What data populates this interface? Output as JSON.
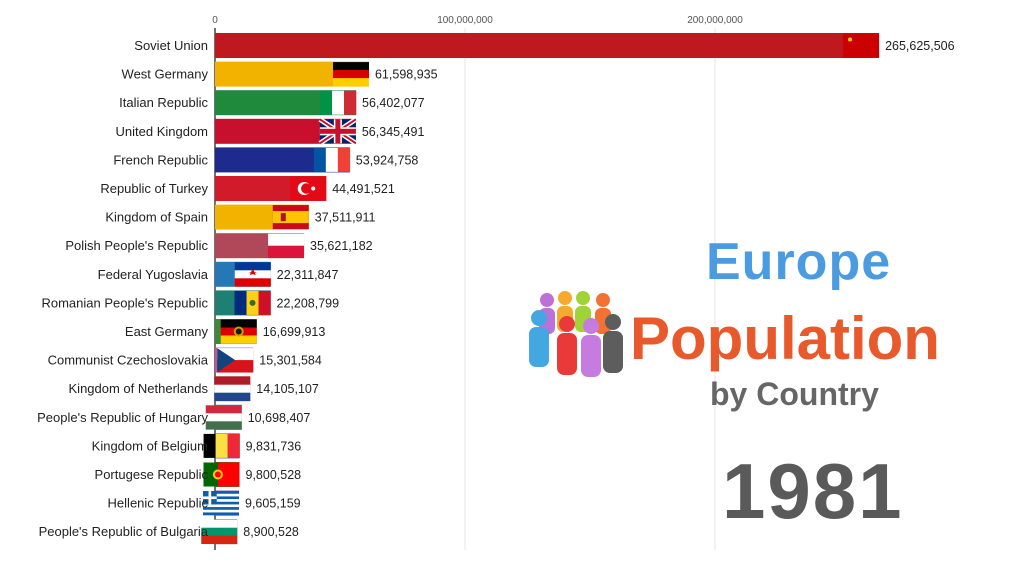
{
  "colors": {
    "title_blue": "#4a9be0",
    "title_orange": "#e8592c",
    "subtitle_gray": "#666666",
    "year_gray": "#5a5a5a"
  },
  "title": {
    "line1": "Europe",
    "line2": "Population",
    "line3": "by Country",
    "year": "1981"
  },
  "chart_data": {
    "type": "bar",
    "orientation": "horizontal",
    "xlim": [
      0,
      280000000
    ],
    "x_ticks": [
      0,
      100000000,
      200000000
    ],
    "x_tick_labels": [
      "0",
      "100,000,000",
      "200,000,000"
    ],
    "grid": true,
    "categories": [
      "Soviet Union",
      "West Germany",
      "Italian Republic",
      "United Kingdom",
      "French Republic",
      "Republic of Turkey",
      "Kingdom of Spain",
      "Polish People's Republic",
      "Federal Yugoslavia",
      "Romanian People's Republic",
      "East Germany",
      "Communist Czechoslovakia",
      "Kingdom of Netherlands",
      "People's Republic of Hungary",
      "Kingdom of Belgium",
      "Portugese Republic",
      "Hellenic Republic",
      "People's Republic of Bulgaria"
    ],
    "values": [
      265625506,
      61598935,
      56402077,
      56345491,
      53924758,
      44491521,
      37511911,
      35621182,
      22311847,
      22208799,
      16699913,
      15301584,
      14105107,
      10698407,
      9831736,
      9800528,
      9605159,
      8900528
    ],
    "value_labels": [
      "265,625,506",
      "61,598,935",
      "56,402,077",
      "56,345,491",
      "53,924,758",
      "44,491,521",
      "37,511,911",
      "35,621,182",
      "22,311,847",
      "22,208,799",
      "16,699,913",
      "15,301,584",
      "14,105,107",
      "10,698,407",
      "9,831,736",
      "9,800,528",
      "9,605,159",
      "8,900,528"
    ],
    "bar_colors": [
      "#c0181f",
      "#f2b200",
      "#1f8a3c",
      "#c8102e",
      "#1d2b8f",
      "#d11a2a",
      "#f2b200",
      "#b0485a",
      "#2478b5",
      "#1e7f73",
      "#3a8a3a",
      "#c2589a",
      "#a3573a",
      "#2a7f8f",
      "#6b3fa0",
      "#556b2f",
      "#6b3fa0",
      "#a0523a"
    ],
    "flag_icons": [
      "ussr-flag-icon",
      "west-germany-flag-icon",
      "italy-flag-icon",
      "uk-flag-icon",
      "france-flag-icon",
      "turkey-flag-icon",
      "spain-flag-icon",
      "poland-flag-icon",
      "yugoslavia-flag-icon",
      "romania-flag-icon",
      "east-germany-flag-icon",
      "czechoslovakia-flag-icon",
      "netherlands-flag-icon",
      "hungary-flag-icon",
      "belgium-flag-icon",
      "portugal-flag-icon",
      "greece-flag-icon",
      "bulgaria-flag-icon"
    ]
  }
}
